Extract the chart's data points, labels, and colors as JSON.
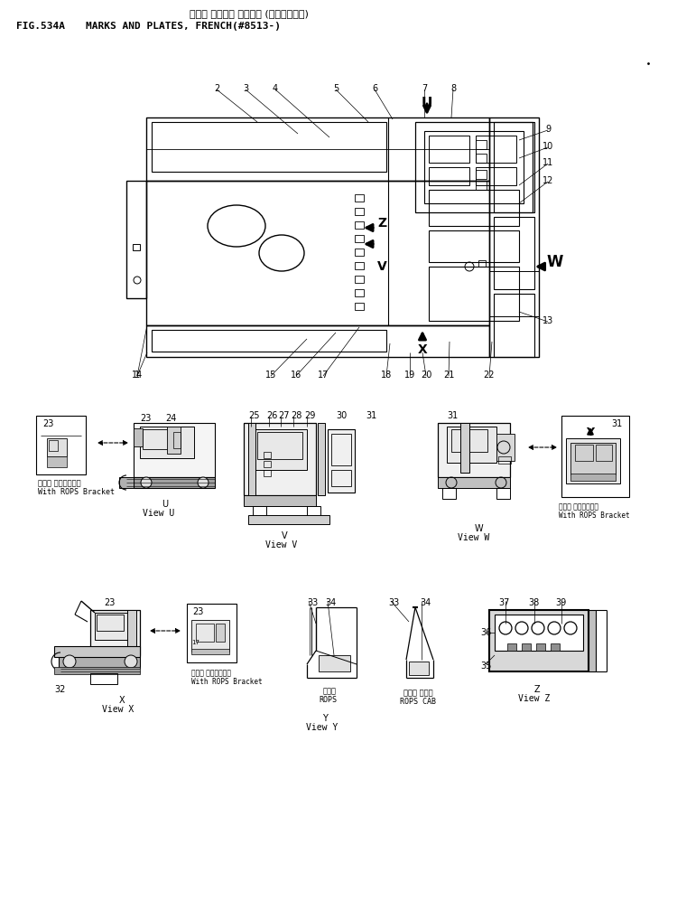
{
  "title_jp": "マーク オシビブ プレート (フランスコー)",
  "title_en": "MARKS AND PLATES, FRENCH(#8513-)",
  "fig": "FIG.534A",
  "bg": "#ffffff"
}
